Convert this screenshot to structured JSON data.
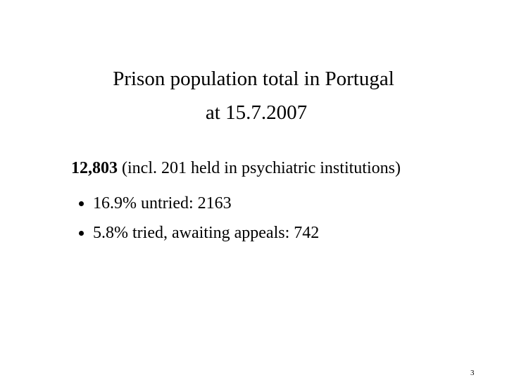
{
  "slide": {
    "title": [
      "Prison population total in Portugal",
      "at 15.7.2007"
    ],
    "total": {
      "figure": "12,803",
      "note": "(incl. 201 held in psychiatric institutions)"
    },
    "bullets": [
      "16.9% untried: 2163",
      "5.8% tried, awaiting appeals: 742"
    ],
    "page_number": "3"
  }
}
